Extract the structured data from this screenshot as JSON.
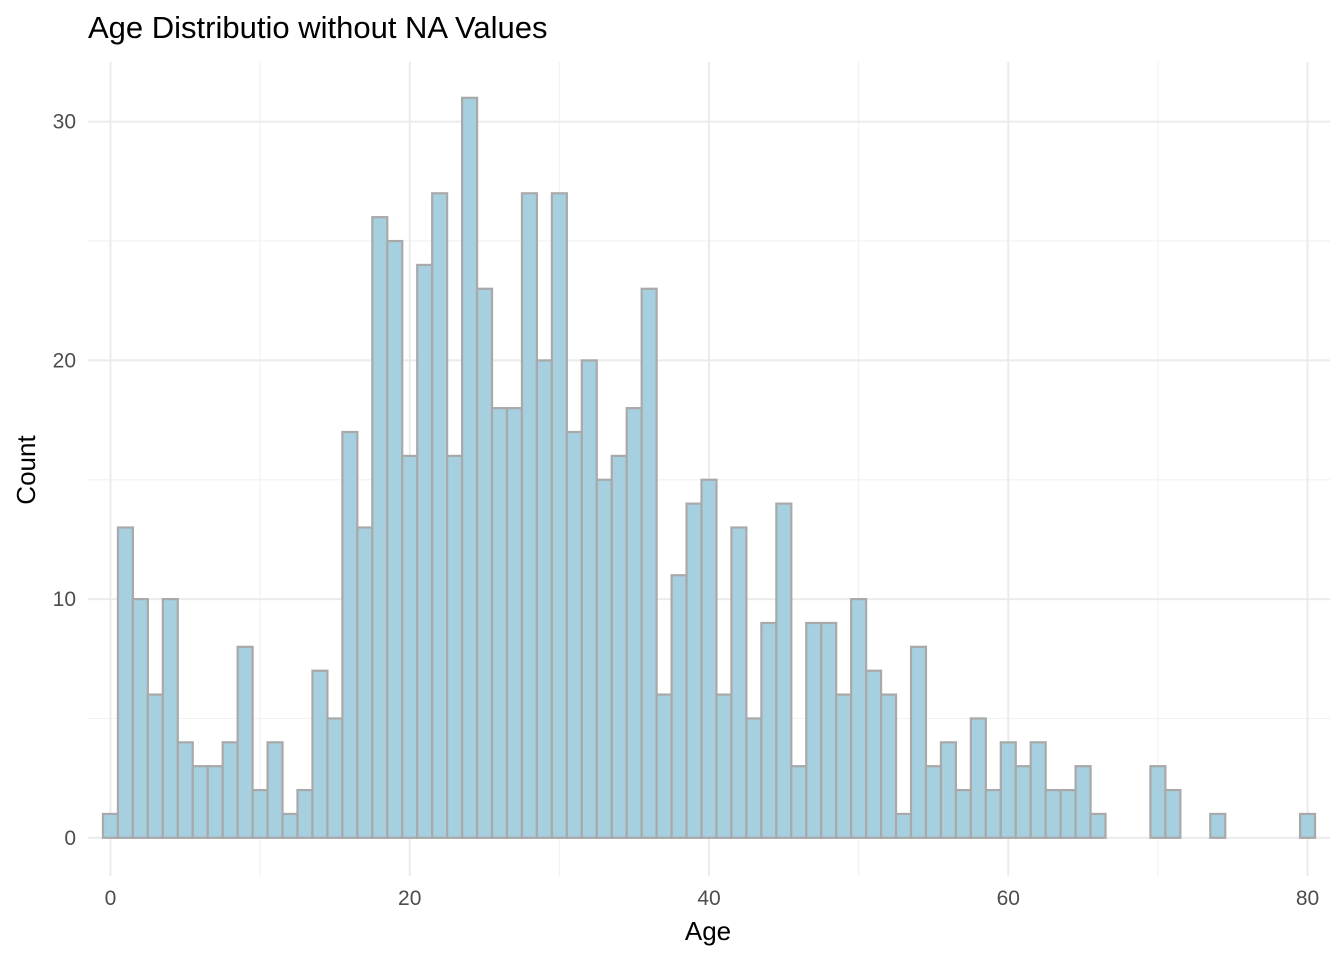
{
  "chart_data": {
    "type": "bar",
    "title": "Age Distributio without NA Values",
    "xlabel": "Age",
    "ylabel": "Count",
    "xlim": [
      -1.5,
      81.5
    ],
    "ylim": [
      -1.6,
      32.5
    ],
    "x_ticks": [
      0,
      20,
      40,
      60,
      80
    ],
    "x_tick_labels": [
      "0",
      "20",
      "40",
      "60",
      "80"
    ],
    "y_ticks": [
      0,
      10,
      20,
      30
    ],
    "y_tick_labels": [
      "0",
      "10",
      "20",
      "30"
    ],
    "grid": true,
    "bin_width": 1,
    "fill_color": "#a6cfe0",
    "outline_color": "#a9a9a9",
    "x": [
      0,
      1,
      2,
      3,
      4,
      5,
      6,
      7,
      8,
      9,
      10,
      11,
      12,
      13,
      14,
      15,
      16,
      17,
      18,
      19,
      20,
      21,
      22,
      23,
      24,
      25,
      26,
      27,
      28,
      29,
      30,
      31,
      32,
      33,
      34,
      35,
      36,
      37,
      38,
      39,
      40,
      41,
      42,
      43,
      44,
      45,
      46,
      47,
      48,
      49,
      50,
      51,
      52,
      53,
      54,
      55,
      56,
      57,
      58,
      59,
      60,
      61,
      62,
      63,
      64,
      65,
      66,
      67,
      68,
      69,
      70,
      71,
      72,
      73,
      74,
      75,
      76,
      77,
      78,
      79,
      80
    ],
    "values": [
      1,
      13,
      10,
      6,
      10,
      4,
      3,
      3,
      4,
      8,
      2,
      4,
      1,
      2,
      7,
      5,
      17,
      13,
      26,
      25,
      16,
      24,
      27,
      16,
      31,
      23,
      18,
      18,
      27,
      20,
      27,
      17,
      20,
      15,
      16,
      18,
      23,
      6,
      11,
      14,
      15,
      6,
      13,
      5,
      9,
      14,
      3,
      9,
      9,
      6,
      10,
      7,
      6,
      1,
      8,
      3,
      4,
      2,
      5,
      2,
      4,
      3,
      4,
      2,
      2,
      3,
      1,
      0,
      0,
      0,
      3,
      2,
      0,
      0,
      1,
      0,
      0,
      0,
      0,
      0,
      1
    ]
  }
}
